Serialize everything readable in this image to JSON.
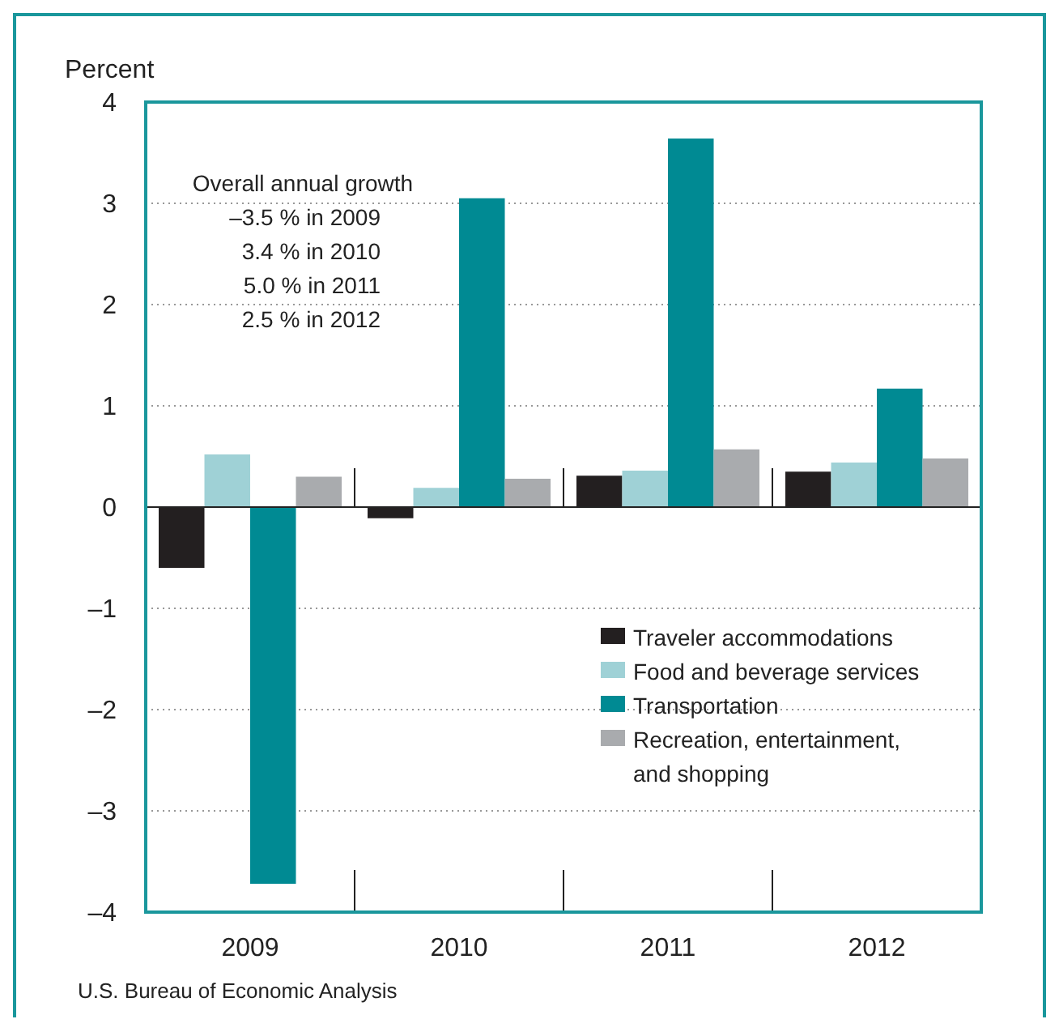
{
  "chart_data": {
    "type": "bar",
    "ylabel": "Percent",
    "categories": [
      "2009",
      "2010",
      "2011",
      "2012"
    ],
    "series": [
      {
        "name": "Traveler accommodations",
        "color": "#231f20",
        "values": [
          -0.6,
          -0.11,
          0.31,
          0.35
        ]
      },
      {
        "name": "Food and beverage services",
        "color": "#9fd1d6",
        "values": [
          0.52,
          0.19,
          0.36,
          0.44
        ]
      },
      {
        "name": "Transportation",
        "color": "#008a93",
        "values": [
          -3.72,
          3.05,
          3.64,
          1.17
        ]
      },
      {
        "name": "Recreation, entertainment, and shopping",
        "color": "#a9abae",
        "values": [
          0.3,
          0.28,
          0.57,
          0.48
        ]
      }
    ],
    "ylim": [
      -4,
      4
    ],
    "yticks": [
      {
        "value": -4,
        "label": "–4"
      },
      {
        "value": -3,
        "label": "–3"
      },
      {
        "value": -2,
        "label": "–2"
      },
      {
        "value": -1,
        "label": "–1"
      },
      0,
      1,
      2,
      3,
      4
    ],
    "grid": "y",
    "legend": "bottom right",
    "annotations": [
      "Overall annual growth\n–3.5 % in 2009\n3.4 % in 2010\n5.0 % in 2011\n2.5 % in 2012",
      "U.S. Bureau of Economic Analysis"
    ]
  }
}
